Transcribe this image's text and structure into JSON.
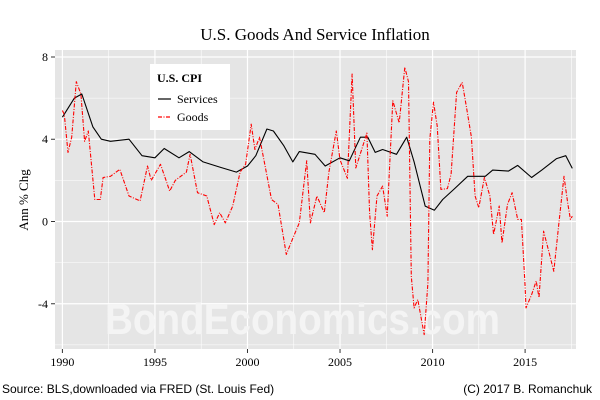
{
  "chart_data": {
    "type": "line",
    "title": "U.S. Goods And Service Inflation",
    "xlabel": "",
    "ylabel": "Ann % Chg",
    "xlim": [
      1989.6,
      2017.75
    ],
    "ylim": [
      -6.2,
      8.34
    ],
    "x_ticks": [
      1990,
      1995,
      2000,
      2005,
      2010,
      2015
    ],
    "x_tick_labels": [
      "1990",
      "1995",
      "2000",
      "2005",
      "2010",
      "2015"
    ],
    "y_ticks": [
      -4,
      0,
      4,
      8
    ],
    "y_tick_labels": [
      "-4",
      "0",
      "4",
      "8"
    ],
    "grid": true,
    "legend": {
      "title": "U.S. CPI",
      "placement": "top-left"
    },
    "series": [
      {
        "name": "Services",
        "color": "#000000",
        "style": "solid",
        "x": [
          1990.0,
          1990.65,
          1991.05,
          1991.65,
          1992.1,
          1992.6,
          1993.6,
          1994.3,
          1995.0,
          1995.5,
          1996.3,
          1996.85,
          1997.6,
          1998.55,
          1999.4,
          2000.0,
          2000.45,
          2001.05,
          2001.4,
          2001.95,
          2002.45,
          2002.8,
          2003.65,
          2004.2,
          2005.0,
          2005.5,
          2006.1,
          2006.5,
          2006.9,
          2007.3,
          2008.05,
          2008.6,
          2009.0,
          2009.6,
          2010.1,
          2010.55,
          2011.15,
          2011.9,
          2012.85,
          2013.25,
          2014.1,
          2014.6,
          2015.35,
          2015.9,
          2016.7,
          2017.2,
          2017.55
        ],
        "values": [
          5.07,
          6.0,
          6.2,
          4.6,
          4.0,
          3.9,
          4.0,
          3.2,
          3.1,
          3.55,
          3.1,
          3.4,
          2.9,
          2.63,
          2.4,
          2.7,
          3.2,
          4.5,
          4.4,
          3.7,
          2.9,
          3.4,
          3.27,
          2.7,
          3.1,
          2.95,
          4.1,
          4.1,
          3.36,
          3.5,
          3.27,
          4.1,
          2.9,
          0.75,
          0.55,
          1.07,
          1.56,
          2.2,
          2.2,
          2.5,
          2.45,
          2.73,
          2.14,
          2.5,
          3.06,
          3.2,
          2.58
        ]
      },
      {
        "name": "Goods",
        "color": "#ff0000",
        "style": "dashdot",
        "x": [
          1990.0,
          1990.1,
          1990.3,
          1990.5,
          1990.75,
          1991.0,
          1991.2,
          1991.4,
          1991.75,
          1992.05,
          1992.2,
          1992.6,
          1993.1,
          1993.6,
          1994.2,
          1994.6,
          1994.8,
          1995.3,
          1995.8,
          1996.1,
          1996.7,
          1996.9,
          1997.3,
          1997.8,
          1998.2,
          1998.5,
          1998.8,
          1999.2,
          1999.6,
          1999.9,
          2000.2,
          2000.4,
          2000.65,
          2000.9,
          2001.3,
          2001.65,
          2002.1,
          2002.5,
          2002.8,
          2003.2,
          2003.4,
          2003.75,
          2004.15,
          2004.4,
          2004.8,
          2005.0,
          2005.4,
          2005.65,
          2005.85,
          2006.45,
          2006.6,
          2006.75,
          2007.0,
          2007.3,
          2007.55,
          2007.85,
          2008.2,
          2008.5,
          2008.7,
          2008.85,
          2009.0,
          2009.2,
          2009.55,
          2009.75,
          2009.85,
          2010.05,
          2010.25,
          2010.45,
          2010.8,
          2011.0,
          2011.3,
          2011.6,
          2011.85,
          2012.1,
          2012.3,
          2012.5,
          2012.8,
          2013.1,
          2013.3,
          2013.6,
          2013.75,
          2014.05,
          2014.3,
          2014.6,
          2014.8,
          2015.0,
          2015.05,
          2015.35,
          2015.6,
          2015.75,
          2016.0,
          2016.3,
          2016.55,
          2016.85,
          2017.1,
          2017.3,
          2017.45,
          2017.55
        ],
        "values": [
          5.4,
          5.2,
          3.36,
          4.1,
          6.8,
          6.2,
          3.9,
          4.4,
          1.07,
          1.07,
          2.14,
          2.2,
          2.54,
          1.24,
          1.0,
          2.7,
          2.0,
          2.78,
          1.48,
          2.0,
          2.4,
          3.27,
          1.4,
          1.24,
          -0.15,
          0.43,
          -0.07,
          0.75,
          2.4,
          2.78,
          4.73,
          3.5,
          4.1,
          2.95,
          1.07,
          0.83,
          -1.6,
          -0.7,
          -0.07,
          2.95,
          -0.07,
          1.24,
          0.43,
          2.4,
          4.4,
          3.0,
          2.1,
          7.17,
          2.6,
          4.3,
          0.43,
          -1.37,
          1.24,
          1.72,
          0.26,
          5.87,
          4.8,
          7.5,
          6.8,
          -2.67,
          -4.2,
          -3.8,
          -5.5,
          -3.0,
          4.0,
          5.8,
          4.65,
          1.56,
          1.6,
          2.3,
          6.28,
          6.77,
          5.46,
          4.1,
          1.24,
          0.67,
          2.14,
          1.24,
          -0.63,
          0.75,
          -1.04,
          0.83,
          1.4,
          0.1,
          0.1,
          -3.15,
          -4.2,
          -3.56,
          -2.9,
          -3.7,
          -0.47,
          -1.53,
          -2.42,
          0.1,
          2.2,
          0.9,
          0.1,
          0.26
        ]
      }
    ]
  },
  "watermark": "BondEconomics.com",
  "footer": {
    "source": "Source: BLS,downloaded via FRED (St. Louis Fed)",
    "copyright": "(C) 2017 B. Romanchuk"
  },
  "colors": {
    "panel": "#e5e5e5",
    "grid": "#ffffff"
  }
}
